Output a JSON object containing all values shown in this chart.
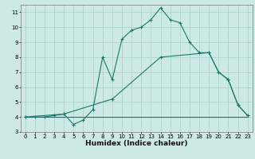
{
  "xlabel": "Humidex (Indice chaleur)",
  "background_color": "#cce9e5",
  "grid_color": "#aacfcb",
  "line_color": "#1a7a6a",
  "xlim": [
    -0.5,
    23.5
  ],
  "ylim": [
    3,
    11.5
  ],
  "yticks": [
    3,
    4,
    5,
    6,
    7,
    8,
    9,
    10,
    11
  ],
  "xticks": [
    0,
    1,
    2,
    3,
    4,
    5,
    6,
    7,
    8,
    9,
    10,
    11,
    12,
    13,
    14,
    15,
    16,
    17,
    18,
    19,
    20,
    21,
    22,
    23
  ],
  "series1_x": [
    0,
    1,
    2,
    3,
    4,
    5,
    6,
    7,
    8,
    9,
    10,
    11,
    12,
    13,
    14,
    15,
    16,
    17,
    18,
    19,
    20,
    21,
    22,
    23
  ],
  "series1_y": [
    4.0,
    4.0,
    4.0,
    4.1,
    4.2,
    3.5,
    3.8,
    4.5,
    8.0,
    6.5,
    9.2,
    9.8,
    10.0,
    10.5,
    11.3,
    10.5,
    10.3,
    9.0,
    8.3,
    8.3,
    7.0,
    6.5,
    4.8,
    4.1
  ],
  "series2_x": [
    0,
    4,
    9,
    14,
    19,
    20,
    21,
    22,
    23
  ],
  "series2_y": [
    4.0,
    4.2,
    5.2,
    8.0,
    8.3,
    7.0,
    6.5,
    4.8,
    4.1
  ],
  "series3_x": [
    0,
    23
  ],
  "series3_y": [
    4.0,
    4.0
  ],
  "marker_size": 2.5,
  "line_width": 0.8
}
